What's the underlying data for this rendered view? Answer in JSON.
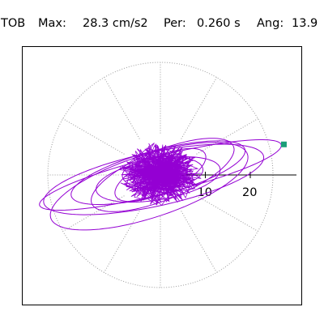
{
  "header": {
    "station": "TOB",
    "max_label": "Max:",
    "max_value": "28.3 cm/s2",
    "period_label": "Per:",
    "period_value": "0.260 s",
    "angle_label": "Ang:",
    "angle_value": "13.9"
  },
  "colors": {
    "trace": "#9400d3",
    "marker": "#1a9e78",
    "grid": "#9a9a9a",
    "axis": "#000000",
    "frame": "#000000"
  },
  "chart_data": {
    "type": "polar-orbit",
    "title": "TOB  Max:  28.3 cm/s2  Per:  0.260 s  Ang:  13.9",
    "grid": true,
    "grid_rings": [
      10,
      20
    ],
    "grid_spokes_deg": [
      0,
      30,
      60,
      90,
      120,
      150,
      180,
      210,
      240,
      270,
      300,
      330
    ],
    "radial_axis_angle_deg": 0,
    "radial_ticks": [
      "10",
      "20"
    ],
    "max_amplitude": 28.3,
    "max_angle_deg": 13.9,
    "marker": {
      "r": 28.3,
      "angle_deg": 13.9
    },
    "loops": [
      {
        "a": 27.7,
        "b": 4.2,
        "tilt": 14,
        "cx": 0.0,
        "cy": 0.0
      },
      {
        "a": 25.0,
        "b": 6.0,
        "tilt": 12,
        "cx": -1.5,
        "cy": -1.0
      },
      {
        "a": 23.0,
        "b": 7.0,
        "tilt": 18,
        "cx": -2.5,
        "cy": -2.5
      },
      {
        "a": 20.0,
        "b": 5.0,
        "tilt": 15,
        "cx": -0.5,
        "cy": 0.5
      },
      {
        "a": 17.0,
        "b": 5.5,
        "tilt": 22,
        "cx": 0.5,
        "cy": 0.0
      },
      {
        "a": 14.0,
        "b": 4.5,
        "tilt": 10,
        "cx": -0.5,
        "cy": -1.0
      },
      {
        "a": 11.0,
        "b": 4.0,
        "tilt": 25,
        "cx": 0.0,
        "cy": 0.0
      },
      {
        "a": 9.0,
        "b": 3.5,
        "tilt": 5,
        "cx": 0.5,
        "cy": 0.5
      }
    ]
  }
}
